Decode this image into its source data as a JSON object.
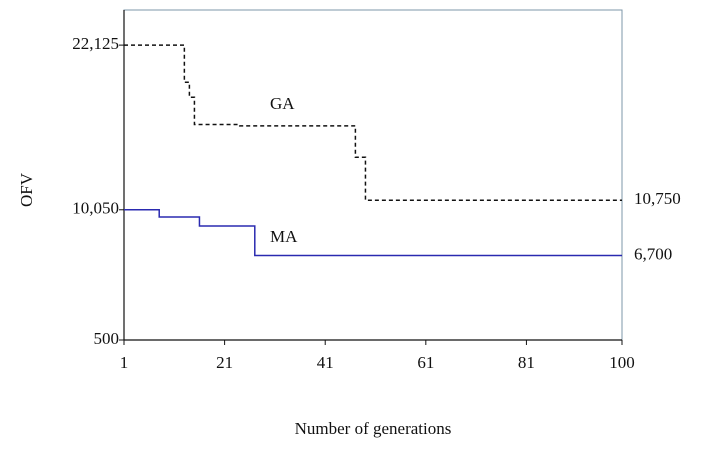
{
  "chart_data": {
    "type": "line",
    "x_label": "Number of generations",
    "y_label": "OFV",
    "xlim": [
      1,
      100
    ],
    "xticks": [
      1,
      21,
      41,
      61,
      81,
      100
    ],
    "ylim": [
      500,
      24700
    ],
    "yticks": [
      500,
      {
        "value": 10050,
        "label": "10,050"
      },
      {
        "value": 22125,
        "label": "22,125"
      }
    ],
    "series": [
      {
        "name": "GA",
        "color": "#111111",
        "dash": true,
        "x": [
          1,
          13,
          13,
          14,
          14,
          15,
          15,
          24,
          24,
          47,
          47,
          49,
          49,
          100
        ],
        "values": [
          22125,
          22125,
          19400,
          19400,
          18300,
          18300,
          16300,
          16300,
          16200,
          16200,
          13900,
          13900,
          10750,
          10750
        ],
        "value_labels": [
          null,
          null,
          null,
          null,
          null,
          null,
          null,
          null,
          null,
          null,
          null,
          null,
          null,
          "10,750"
        ]
      },
      {
        "name": "MA",
        "color": "#2a2ab0",
        "dash": false,
        "x": [
          1,
          8,
          8,
          16,
          16,
          27,
          27,
          100
        ],
        "values": [
          10050,
          10050,
          9520,
          9520,
          8860,
          8860,
          6700,
          6700
        ],
        "value_labels": [
          null,
          null,
          null,
          null,
          null,
          null,
          null,
          "6,700"
        ]
      }
    ]
  }
}
